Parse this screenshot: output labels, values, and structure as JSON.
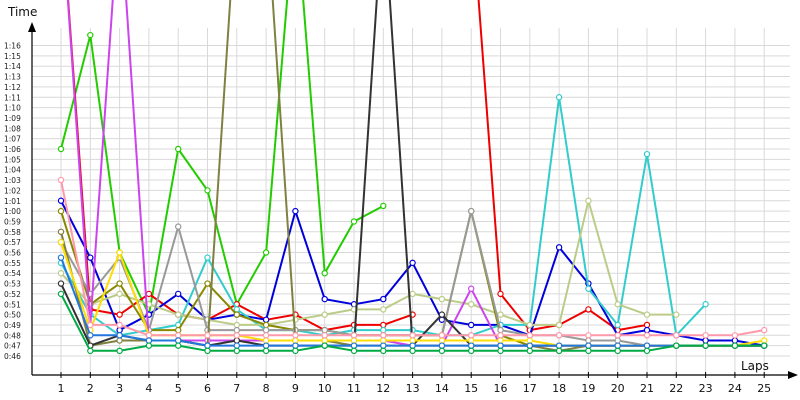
{
  "chart_data": {
    "type": "line",
    "ylabel": "Time",
    "xlabel": "Laps",
    "x": [
      1,
      2,
      3,
      4,
      5,
      6,
      7,
      8,
      9,
      10,
      11,
      12,
      13,
      14,
      15,
      16,
      17,
      18,
      19,
      20,
      21,
      22,
      23,
      24,
      25
    ],
    "ylim_seconds": [
      45,
      79
    ],
    "y_ticks": [
      "0:46",
      "0:47",
      "0:48",
      "0:49",
      "0:50",
      "0:51",
      "0:52",
      "0:53",
      "0:54",
      "0:55",
      "0:56",
      "0:57",
      "0:58",
      "0:59",
      "1:00",
      "1:01",
      "1:02",
      "1:03",
      "1:04",
      "1:05",
      "1:06",
      "1:07",
      "1:08",
      "1:09",
      "1:10",
      "1:11",
      "1:12",
      "1:13",
      "1:14",
      "1:15",
      "1:16"
    ],
    "grid": true,
    "series": [
      {
        "color": "#22cc00",
        "values": [
          66,
          77,
          56,
          50,
          66,
          62,
          51,
          56,
          90,
          54,
          59,
          60.5,
          null,
          null,
          null,
          null,
          null,
          null,
          null,
          null,
          null,
          null,
          null,
          null,
          null
        ]
      },
      {
        "color": "#ee0000",
        "values": [
          90,
          50.5,
          50,
          52,
          50,
          49.5,
          51,
          49.5,
          50,
          48.5,
          49,
          49,
          50,
          null,
          90,
          52,
          48.5,
          49,
          50.5,
          48.5,
          49,
          null,
          null,
          null,
          null
        ]
      },
      {
        "color": "#0000dd",
        "values": [
          61,
          55.5,
          48.5,
          50,
          52,
          49.5,
          50,
          49.5,
          60,
          51.5,
          51,
          51.5,
          55,
          49.5,
          49,
          49,
          48,
          56.5,
          53,
          48,
          48.5,
          48,
          47.5,
          47.5,
          47
        ]
      },
      {
        "color": "#33cccc",
        "values": [
          55,
          50,
          48,
          48.5,
          49,
          55.5,
          50.5,
          48.5,
          48.5,
          48,
          48.5,
          48.5,
          48.5,
          48,
          48,
          49,
          49,
          71,
          52.5,
          49,
          65.5,
          48,
          51,
          null,
          null
        ]
      },
      {
        "color": "#bbcc88",
        "values": [
          54,
          51,
          52,
          51,
          50,
          49.5,
          49,
          49,
          49.5,
          50,
          50.5,
          50.5,
          52,
          51.5,
          51,
          50,
          49,
          49,
          61,
          51,
          50,
          50,
          null,
          null,
          null
        ]
      },
      {
        "color": "#888800",
        "values": [
          60,
          51,
          53,
          48.5,
          48.5,
          53,
          50,
          49,
          48.5,
          48.5,
          48,
          48,
          48,
          48,
          60,
          48,
          47,
          47,
          47,
          47,
          47,
          47,
          47,
          47,
          47
        ]
      },
      {
        "color": "#999999",
        "values": [
          57,
          52,
          55.5,
          48.5,
          58.5,
          48.5,
          48.5,
          48.5,
          48.5,
          48.5,
          48,
          48,
          48,
          48,
          60,
          48.5,
          48,
          48,
          47.5,
          47.5,
          47,
          47,
          47,
          47,
          47
        ]
      },
      {
        "color": "#cc44ee",
        "values": [
          90,
          49,
          90,
          47.5,
          47.5,
          47.5,
          47.5,
          47.5,
          47.5,
          47.5,
          47.5,
          47.5,
          47,
          47,
          52.5,
          47,
          47,
          47,
          47,
          47,
          47,
          47,
          47,
          47,
          47
        ]
      },
      {
        "color": "#808040",
        "values": [
          58,
          47,
          47.5,
          47.5,
          47.5,
          47,
          90,
          90,
          47.5,
          47.5,
          47,
          47,
          47,
          47,
          47,
          47,
          47,
          46.5,
          47,
          47,
          47,
          47,
          47,
          47,
          47
        ]
      },
      {
        "color": "#333333",
        "values": [
          53,
          47,
          48,
          47.5,
          47.5,
          47,
          47.5,
          47,
          47,
          47,
          47,
          90,
          47,
          50,
          47,
          47,
          47,
          47,
          47,
          47,
          47,
          47,
          47,
          47,
          47
        ]
      },
      {
        "color": "#ffdd00",
        "values": [
          57,
          48.5,
          56,
          48,
          48,
          48,
          48,
          47.5,
          47.5,
          47.5,
          47.5,
          47.5,
          47.5,
          47.5,
          47.5,
          47.5,
          47.5,
          47,
          47,
          47,
          47,
          47,
          47,
          47,
          47.5
        ]
      },
      {
        "color": "#ff99aa",
        "values": [
          63,
          49,
          49,
          48,
          48,
          48,
          48,
          48,
          48,
          48,
          48,
          48,
          48,
          48,
          48,
          48,
          48,
          48,
          48,
          48,
          48,
          48,
          48,
          48,
          48.5
        ]
      },
      {
        "color": "#2277dd",
        "values": [
          55.5,
          48,
          48,
          47.5,
          47.5,
          47,
          47,
          47,
          47,
          47,
          47,
          47,
          47,
          47,
          47,
          47,
          47,
          47,
          47,
          47,
          47,
          47,
          47,
          47,
          47
        ]
      },
      {
        "color": "#00aa44",
        "values": [
          52,
          46.5,
          46.5,
          47,
          47,
          46.5,
          46.5,
          46.5,
          46.5,
          47,
          46.5,
          46.5,
          46.5,
          46.5,
          46.5,
          46.5,
          46.5,
          46.5,
          46.5,
          46.5,
          46.5,
          47,
          47,
          47,
          47
        ]
      }
    ]
  }
}
